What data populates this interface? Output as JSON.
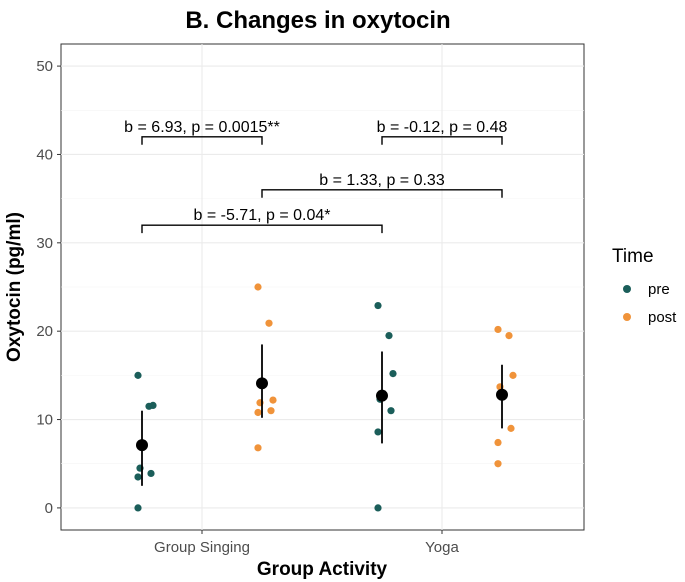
{
  "chart_data": {
    "type": "scatter",
    "title": "B. Changes in oxytocin",
    "xlabel": "Group Activity",
    "ylabel": "Oxytocin (pg/ml)",
    "categories": [
      "Group Singing",
      "Yoga"
    ],
    "ylim": [
      -2.5,
      52.5
    ],
    "yticks": [
      0,
      10,
      20,
      30,
      40,
      50
    ],
    "grid": true,
    "legend": {
      "title": "Time",
      "position": "right",
      "entries": [
        {
          "label": "pre",
          "color": "#1b5e5a"
        },
        {
          "label": "post",
          "color": "#f0933a"
        }
      ]
    },
    "series": [
      {
        "name": "pre",
        "color": "#1b5e5a",
        "groups": [
          {
            "category": "Group Singing",
            "points": [
              15.0,
              11.5,
              11.6,
              4.5,
              3.9,
              3.5,
              0.0
            ],
            "mean": 7.1,
            "ci": [
              2.5,
              11.0
            ]
          },
          {
            "category": "Yoga",
            "points": [
              22.9,
              19.5,
              15.2,
              12.3,
              11.0,
              8.6,
              0.0
            ],
            "mean": 12.7,
            "ci": [
              7.3,
              17.7
            ]
          }
        ]
      },
      {
        "name": "post",
        "color": "#f0933a",
        "groups": [
          {
            "category": "Group Singing",
            "points": [
              25.0,
              20.9,
              12.2,
              11.9,
              11.0,
              10.8,
              6.8
            ],
            "mean": 14.1,
            "ci": [
              10.2,
              18.5
            ]
          },
          {
            "category": "Yoga",
            "points": [
              20.2,
              19.5,
              15.0,
              13.7,
              9.0,
              7.4,
              5.0
            ],
            "mean": 12.8,
            "ci": [
              9.0,
              16.2
            ]
          }
        ]
      }
    ],
    "annotations": [
      {
        "text": "b = 6.93, p = 0.0015**",
        "from": "Group Singing:pre",
        "to": "Group Singing:post",
        "y": 42
      },
      {
        "text": "b = -0.12, p = 0.48",
        "from": "Yoga:pre",
        "to": "Yoga:post",
        "y": 42
      },
      {
        "text": "b = 1.33, p = 0.33",
        "from": "Group Singing:post",
        "to": "Yoga:post",
        "y": 36
      },
      {
        "text": "b = -5.71, p = 0.04*",
        "from": "Group Singing:pre",
        "to": "Yoga:pre",
        "y": 32
      }
    ]
  }
}
